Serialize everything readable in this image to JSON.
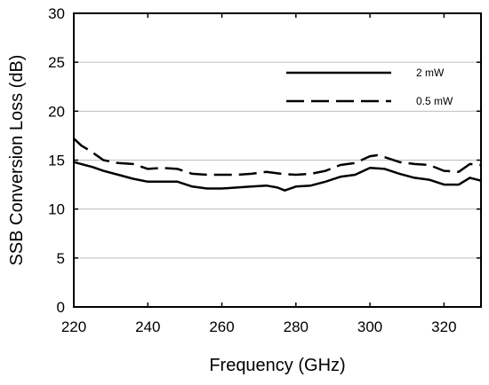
{
  "chart_data": {
    "type": "line",
    "title": "",
    "xlabel": "Frequency (GHz)",
    "ylabel": "SSB Conversion Loss (dB)",
    "xlim": [
      220,
      330
    ],
    "ylim": [
      0,
      30
    ],
    "x_ticks": [
      220,
      240,
      260,
      280,
      300,
      320
    ],
    "y_ticks": [
      0,
      5,
      10,
      15,
      20,
      25,
      30
    ],
    "grid": "horizontal",
    "legend_position": "top-right",
    "series": [
      {
        "name": "2 mW",
        "line_style": "solid",
        "color": "#000000",
        "x": [
          220,
          222,
          225,
          228,
          232,
          236,
          240,
          244,
          248,
          252,
          256,
          260,
          264,
          268,
          272,
          275,
          277,
          280,
          284,
          288,
          292,
          296,
          300,
          304,
          308,
          312,
          316,
          320,
          324,
          327,
          330
        ],
        "y": [
          14.8,
          14.6,
          14.3,
          13.9,
          13.5,
          13.1,
          12.8,
          12.8,
          12.8,
          12.3,
          12.1,
          12.1,
          12.2,
          12.3,
          12.4,
          12.2,
          11.9,
          12.3,
          12.4,
          12.8,
          13.3,
          13.5,
          14.2,
          14.1,
          13.6,
          13.2,
          13.0,
          12.5,
          12.5,
          13.2,
          12.9
        ]
      },
      {
        "name": "0.5 mW",
        "line_style": "dashed",
        "color": "#000000",
        "x": [
          220,
          222,
          225,
          228,
          232,
          236,
          240,
          244,
          248,
          252,
          256,
          260,
          264,
          268,
          272,
          276,
          280,
          284,
          288,
          292,
          296,
          300,
          302,
          304,
          308,
          312,
          316,
          320,
          324,
          327,
          330
        ],
        "y": [
          17.2,
          16.5,
          15.8,
          15.0,
          14.7,
          14.6,
          14.1,
          14.2,
          14.1,
          13.6,
          13.5,
          13.5,
          13.5,
          13.6,
          13.8,
          13.6,
          13.5,
          13.6,
          13.9,
          14.5,
          14.7,
          15.4,
          15.5,
          15.3,
          14.8,
          14.6,
          14.5,
          13.9,
          13.8,
          14.6,
          14.5
        ]
      }
    ]
  }
}
